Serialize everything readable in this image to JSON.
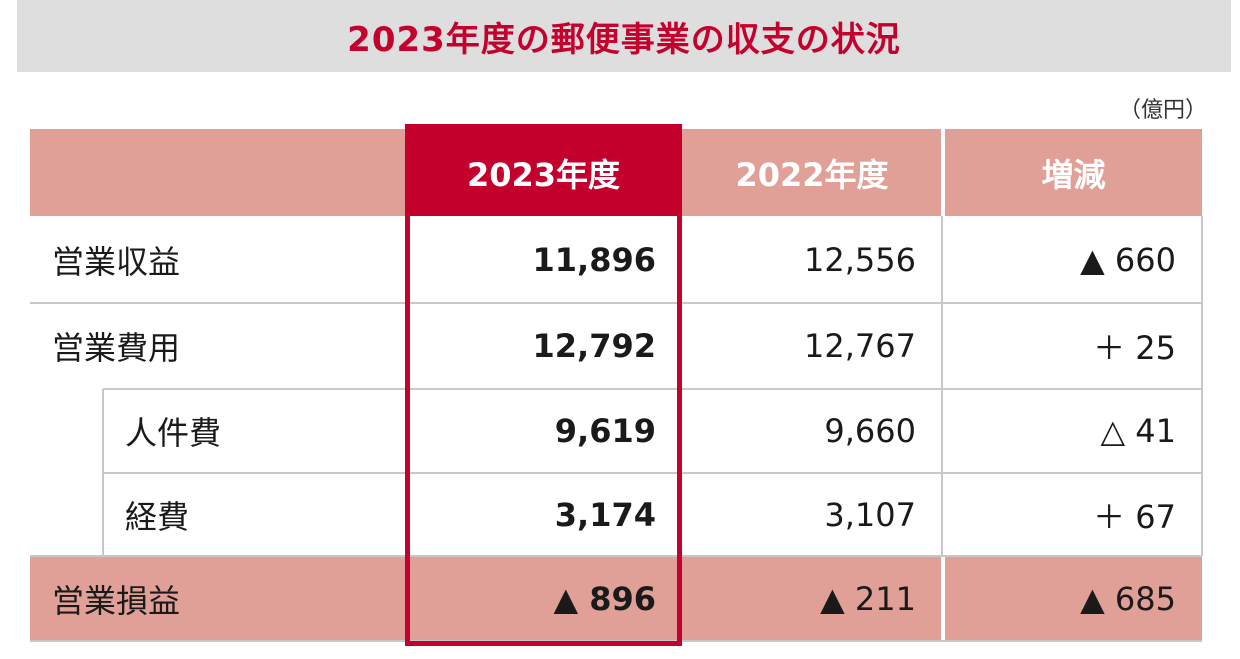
{
  "title": "2023年度の郵便事業の収支の状況",
  "unit": "（億円）",
  "header": {
    "col_2023": "2023年度",
    "col_2022": "2022年度",
    "col_change": "増減"
  },
  "rows": [
    {
      "label": "営業収益",
      "v2023": "11,896",
      "v2022": "12,556",
      "change": "▲ 660"
    },
    {
      "label": "営業費用",
      "v2023": "12,792",
      "v2022": "12,767",
      "change": "＋ 25"
    },
    {
      "label": "人件費",
      "v2023": "9,619",
      "v2022": "9,660",
      "change": "△ 41"
    },
    {
      "label": "経費",
      "v2023": "3,174",
      "v2022": "3,107",
      "change": "＋ 67"
    },
    {
      "label": "営業損益",
      "v2023": "▲ 896",
      "v2022": "▲ 211",
      "change": "▲ 685"
    }
  ],
  "colors": {
    "accent": "#c4002d",
    "header_pink": "#e0a097",
    "title_bg": "#dedede"
  }
}
